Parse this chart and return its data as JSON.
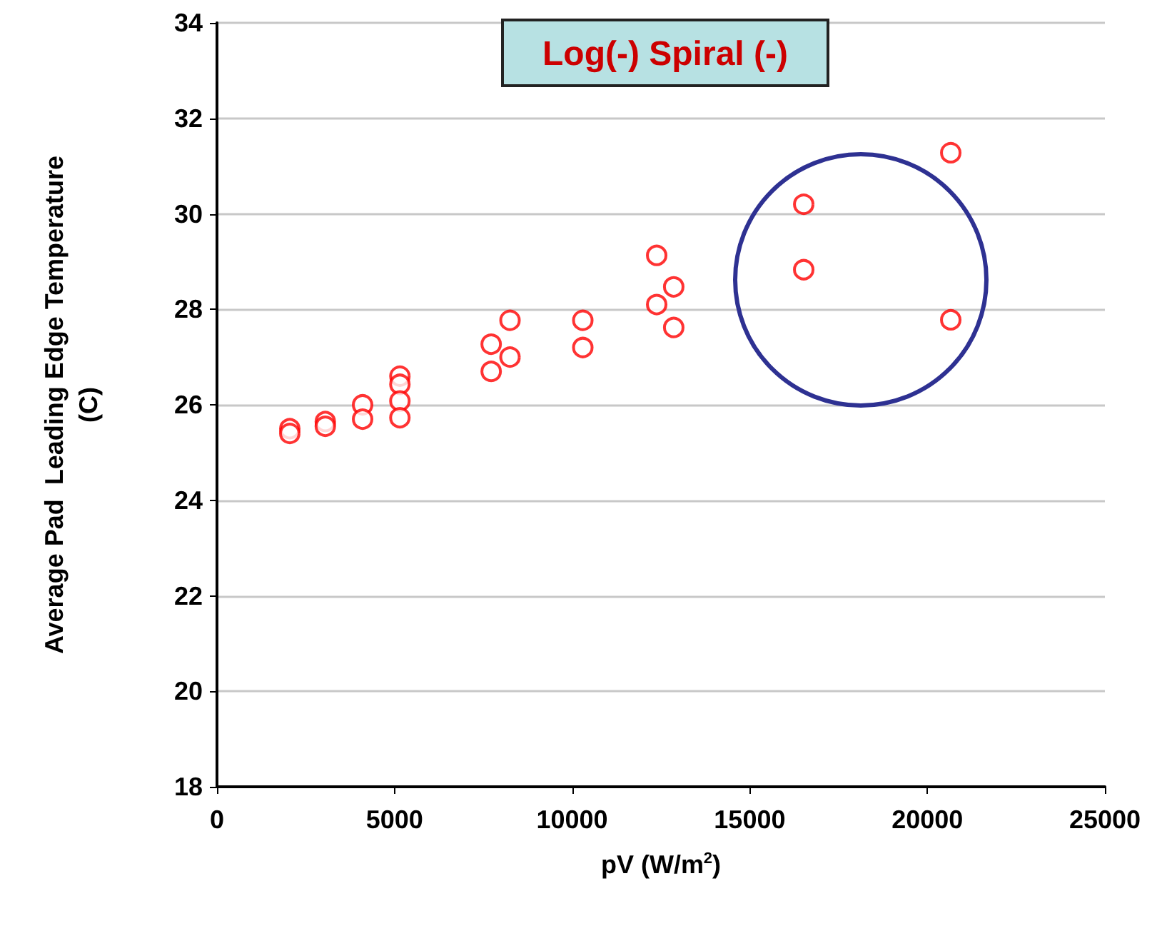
{
  "chart_data": {
    "type": "scatter",
    "title": "Log(-) Spiral (-)",
    "xlabel": "pV (W/m$^{2}$)",
    "ylabel": "Average Pad  Leading Edge Temperature\n(C)",
    "series": [
      {
        "color": "#ff0000",
        "x": [
          2050,
          2050,
          3050,
          3050,
          4100,
          4100,
          5150,
          5150,
          5150,
          5150,
          7720,
          7720,
          8250,
          8250,
          10300,
          10300,
          12380,
          12380,
          12860,
          12860,
          16520,
          16520,
          20660,
          20660
        ],
        "values": [
          25.5,
          25.4,
          25.65,
          25.55,
          26.0,
          25.7,
          26.6,
          26.43,
          26.08,
          25.73,
          27.27,
          26.7,
          27.77,
          27.0,
          27.77,
          27.2,
          29.13,
          28.1,
          28.47,
          27.62,
          30.2,
          28.83,
          31.28,
          27.78
        ]
      }
    ],
    "xlim": [
      0,
      25000
    ],
    "xticks": [
      0,
      5000,
      10000,
      15000,
      20000,
      25000
    ],
    "ylim": [
      18,
      34
    ],
    "yticks": [
      18,
      20,
      22,
      24,
      26,
      28,
      30,
      32,
      34
    ],
    "grid": "y",
    "marker": "circle"
  }
}
